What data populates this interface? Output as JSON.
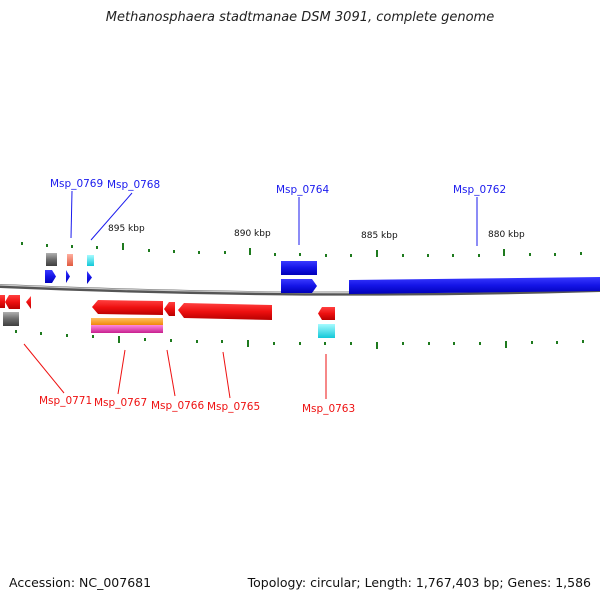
{
  "title": "Methanosphaera stadtmanae DSM 3091, complete genome",
  "footer": {
    "accession": "Accession: NC_007681",
    "summary": "Topology: circular; Length: 1,767,403 bp; Genes: 1,586"
  },
  "colors": {
    "forward_gene": "#1a1aee",
    "reverse_gene": "#ee1111",
    "backbone": "#8a8a8a",
    "tick": "#1e7a1e",
    "gray_block": "#6a6a6a",
    "cyan_block": "#22e0e8",
    "orange_block": "#ff9a1a",
    "magenta_block": "#e83ab8",
    "salmon_block": "#f07860"
  },
  "scale": {
    "ticks_kbp": [
      {
        "label": "895 kbp"
      },
      {
        "label": "890 kbp"
      },
      {
        "label": "885 kbp"
      },
      {
        "label": "880 kbp"
      }
    ]
  },
  "gene_labels": {
    "top": [
      "Msp_0769",
      "Msp_0768",
      "Msp_0764",
      "Msp_0762"
    ],
    "bottom": [
      "Msp_0771",
      "Msp_0767",
      "Msp_0766",
      "Msp_0765",
      "Msp_0763"
    ]
  }
}
